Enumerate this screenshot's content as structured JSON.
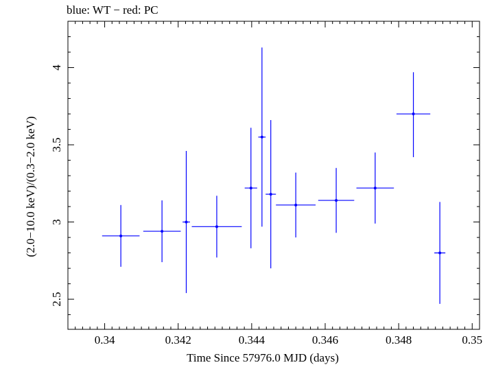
{
  "chart_data": {
    "type": "scatter",
    "title": "blue: WT − red: PC",
    "xlabel": "Time Since 57976.0 MJD (days)",
    "ylabel": "(2.0−10.0 keV)/(0.3−2.0 keV)",
    "xlim": [
      0.339,
      0.3502
    ],
    "ylim": [
      2.305,
      4.3
    ],
    "x_ticks": [
      "0.34",
      "0.342",
      "0.344",
      "0.346",
      "0.348",
      "0.35"
    ],
    "y_ticks": [
      "2.5",
      "3",
      "3.5",
      "4"
    ],
    "series": [
      {
        "color": "#0000ff",
        "points": [
          {
            "x": 0.34044,
            "xerr": 0.00051,
            "y": 2.91,
            "yerr_low": 0.2,
            "yerr_high": 0.2
          },
          {
            "x": 0.34156,
            "xerr": 0.00051,
            "y": 2.94,
            "yerr_low": 0.2,
            "yerr_high": 0.2
          },
          {
            "x": 0.34222,
            "xerr": 0.0001,
            "y": 3.0,
            "yerr_low": 0.46,
            "yerr_high": 0.46
          },
          {
            "x": 0.34305,
            "xerr": 0.00068,
            "y": 2.97,
            "yerr_low": 0.2,
            "yerr_high": 0.2
          },
          {
            "x": 0.34398,
            "xerr": 0.00017,
            "y": 3.22,
            "yerr_low": 0.39,
            "yerr_high": 0.39
          },
          {
            "x": 0.34428,
            "xerr": 0.0001,
            "y": 3.55,
            "yerr_low": 0.58,
            "yerr_high": 0.58
          },
          {
            "x": 0.34452,
            "xerr": 0.00014,
            "y": 3.18,
            "yerr_low": 0.48,
            "yerr_high": 0.48
          },
          {
            "x": 0.3452,
            "xerr": 0.00054,
            "y": 3.11,
            "yerr_low": 0.21,
            "yerr_high": 0.21
          },
          {
            "x": 0.3463,
            "xerr": 0.00049,
            "y": 3.14,
            "yerr_low": 0.21,
            "yerr_high": 0.21
          },
          {
            "x": 0.34736,
            "xerr": 0.00051,
            "y": 3.22,
            "yerr_low": 0.23,
            "yerr_high": 0.23
          },
          {
            "x": 0.3484,
            "xerr": 0.00046,
            "y": 3.7,
            "yerr_low": 0.28,
            "yerr_high": 0.27
          },
          {
            "x": 0.34912,
            "xerr": 0.00015,
            "y": 2.8,
            "yerr_low": 0.33,
            "yerr_high": 0.33
          }
        ]
      }
    ]
  }
}
